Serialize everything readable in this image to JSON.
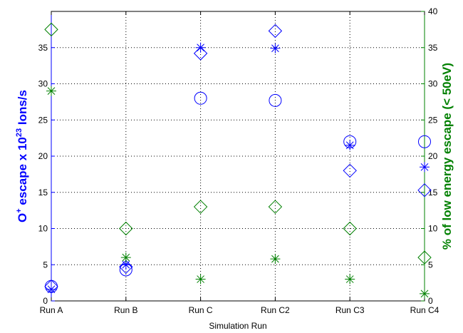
{
  "chart_data": {
    "type": "scatter",
    "categories": [
      "Run A",
      "Run B",
      "Run C",
      "Run C2",
      "Run C3",
      "Run C4"
    ],
    "x": [
      1,
      2,
      3,
      4,
      5,
      6
    ],
    "xlim": [
      1,
      6
    ],
    "xlabel": "Simulation Run",
    "ylabel_left": {
      "prefix": "O",
      "sup1": "+",
      "mid": " escape x 10",
      "sup2": "23",
      "suffix": " Ions/s"
    },
    "ylabel_right": "% of low energy escape (< 50eV)",
    "ylim_left": [
      0,
      40
    ],
    "yticks_left": [
      0,
      5,
      10,
      15,
      20,
      25,
      30,
      35
    ],
    "ylim_right": [
      0,
      40
    ],
    "yticks_right": [
      0,
      5,
      10,
      15,
      20,
      25,
      30,
      35,
      40
    ],
    "grid": true,
    "colors": {
      "left_axis": "#0000ff",
      "right_axis": "#008000",
      "grid": "#000000"
    },
    "series": [
      {
        "axis": "left",
        "marker": "circle",
        "color": "#0000ff",
        "values": [
          2.0,
          4.3,
          28.0,
          27.7,
          22.0,
          22.0
        ]
      },
      {
        "axis": "left",
        "marker": "asterisk",
        "color": "#0000ff",
        "values": [
          1.6,
          5.0,
          35.0,
          34.9,
          21.5,
          18.5
        ]
      },
      {
        "axis": "left",
        "marker": "diamond",
        "color": "#0000ff",
        "values": [
          2.0,
          4.7,
          34.2,
          37.3,
          18.0,
          15.3
        ]
      },
      {
        "axis": "right",
        "marker": "diamond",
        "color": "#008000",
        "values": [
          37.5,
          10.0,
          13.0,
          13.0,
          10.0,
          6.0
        ]
      },
      {
        "axis": "right",
        "marker": "asterisk",
        "color": "#008000",
        "values": [
          29.0,
          6.0,
          3.0,
          5.8,
          3.0,
          1.0
        ]
      }
    ]
  }
}
